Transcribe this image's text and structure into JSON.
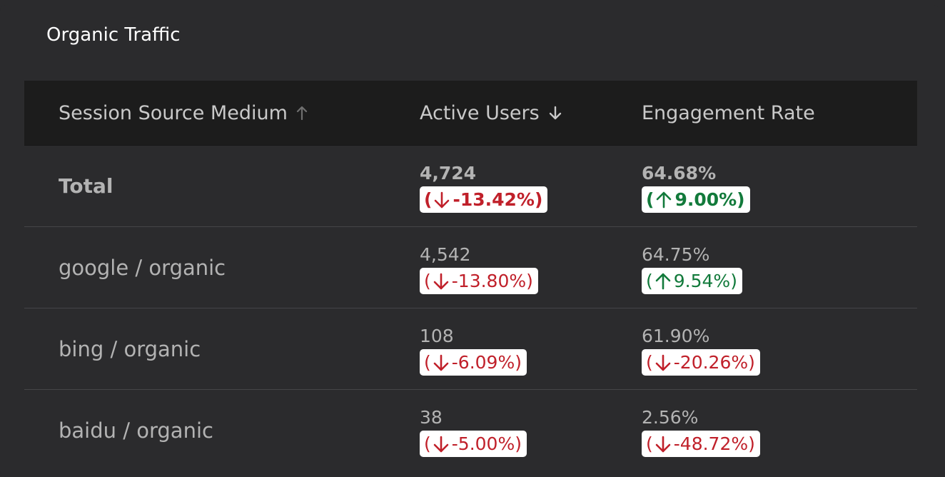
{
  "card": {
    "title": "Organic Traffic"
  },
  "columns": [
    {
      "label": "Session Source Medium",
      "sort_icon": "arrow-up-icon"
    },
    {
      "label": "Active Users",
      "sort_icon": "arrow-down-icon"
    },
    {
      "label": "Engagement Rate"
    }
  ],
  "rows": [
    {
      "label": "Total",
      "users": "4,724",
      "users_delta": "-13.42%",
      "users_trend": "down",
      "rate": "64.68%",
      "rate_delta": "9.00%",
      "rate_trend": "up"
    },
    {
      "label": "google / organic",
      "users": "4,542",
      "users_delta": "-13.80%",
      "users_trend": "down",
      "rate": "64.75%",
      "rate_delta": "9.54%",
      "rate_trend": "up"
    },
    {
      "label": "bing / organic",
      "users": "108",
      "users_delta": "-6.09%",
      "users_trend": "down",
      "rate": "61.90%",
      "rate_delta": "-20.26%",
      "rate_trend": "down"
    },
    {
      "label": "baidu / organic",
      "users": "38",
      "users_delta": "-5.00%",
      "users_trend": "down",
      "rate": "2.56%",
      "rate_delta": "-48.72%",
      "rate_trend": "down"
    }
  ],
  "colors": {
    "card_bg": "#2b2b2d",
    "header_bg": "#1c1c1c",
    "negative": "#c0202a",
    "positive": "#127a3b"
  }
}
